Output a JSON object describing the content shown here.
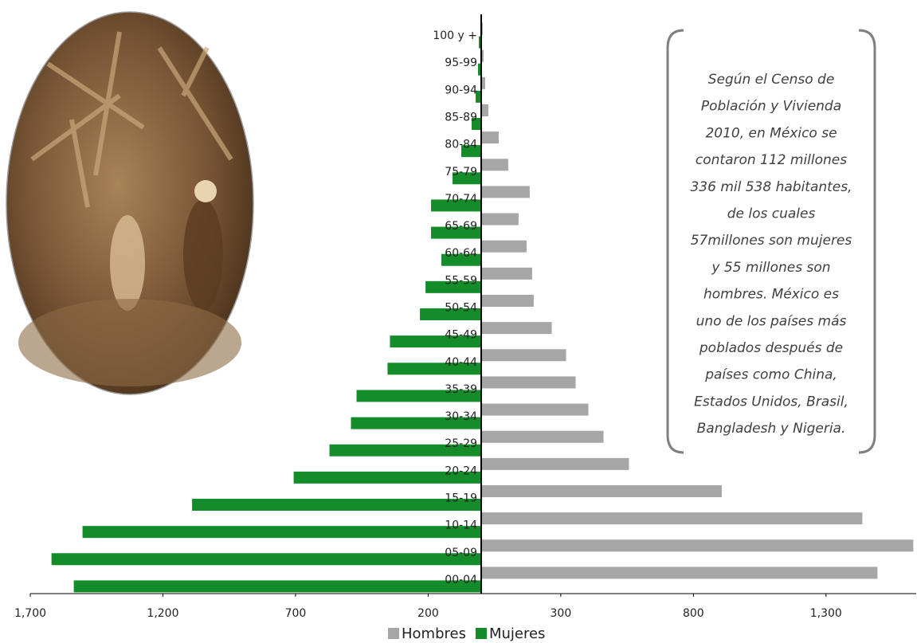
{
  "chart_data": {
    "type": "pyramid",
    "categories": [
      "00-04",
      "05-09",
      "10-14",
      "15-19",
      "20-24",
      "25-29",
      "30-34",
      "35-39",
      "40-44",
      "45-49",
      "50-54",
      "55-59",
      "60-64",
      "65-69",
      "70-74",
      "75-79",
      "80-84",
      "85-89",
      "90-94",
      "95-99",
      "100 y +"
    ],
    "series": [
      {
        "name": "Hombres",
        "color": "#a6a6a6",
        "values": [
          1494,
          1629,
          1437,
          907,
          557,
          461,
          404,
          356,
          320,
          266,
          198,
          192,
          171,
          141,
          183,
          102,
          66,
          27,
          15,
          9,
          6
        ]
      },
      {
        "name": "Mujeres",
        "color": "#148c2a",
        "values": [
          -1536,
          -1620,
          -1503,
          -1090,
          -707,
          -572,
          -491,
          -470,
          -353,
          -344,
          -231,
          -210,
          -150,
          -189,
          -189,
          -108,
          -75,
          -36,
          -21,
          -12,
          -9
        ]
      }
    ],
    "xlim": [
      -1700,
      1640
    ],
    "xticks": [
      {
        "value": -1700,
        "label": "1,700"
      },
      {
        "value": -1200,
        "label": "1,200"
      },
      {
        "value": -700,
        "label": "700"
      },
      {
        "value": -200,
        "label": "200"
      },
      300,
      800,
      {
        "value": 1300,
        "label": "1,300"
      }
    ],
    "legend": "bottom",
    "annotation_lines": [
      "Según el Censo de",
      "Población y Vivienda",
      "2010, en México se",
      "contaron 112 millones",
      "336 mil 538 habitantes,",
      "de los cuales",
      "57millones son mujeres",
      "y 55 millones son",
      "hombres. México es",
      "uno de los países más",
      "poblados después de",
      "países como China,",
      "Estados Unidos, Brasil,",
      "Bangladesh y Nigeria."
    ]
  }
}
